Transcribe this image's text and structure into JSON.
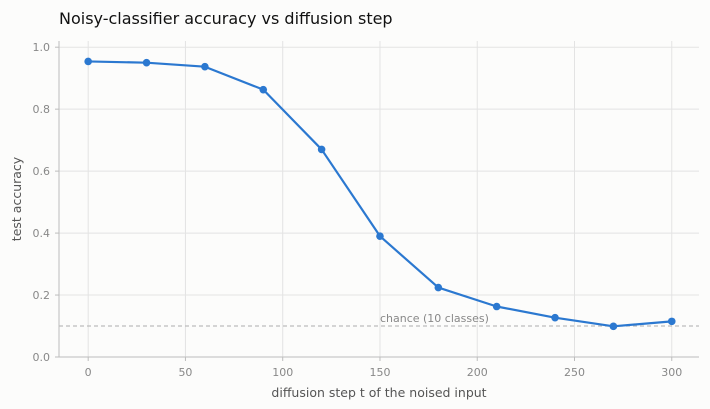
{
  "chart_data": {
    "type": "line",
    "title": "Noisy-classifier accuracy vs diffusion step",
    "xlabel": "diffusion step t of the noised input",
    "ylabel": "test accuracy",
    "xlim": [
      -15,
      314
    ],
    "ylim": [
      0,
      1.02
    ],
    "x_ticks": [
      0,
      50,
      100,
      150,
      200,
      250,
      300
    ],
    "y_ticks": [
      0.0,
      0.2,
      0.4,
      0.6,
      0.8,
      1.0
    ],
    "grid": true,
    "series": [
      {
        "color": "#2b78d0",
        "x": [
          0,
          30,
          60,
          90,
          120,
          150,
          180,
          210,
          240,
          270,
          300
        ],
        "y": [
          0.954,
          0.95,
          0.937,
          0.863,
          0.67,
          0.39,
          0.224,
          0.163,
          0.127,
          0.099,
          0.115
        ]
      }
    ],
    "reference_line": {
      "y": 0.1,
      "label": "chance (10 classes)",
      "color": "#bdbdbd"
    }
  }
}
